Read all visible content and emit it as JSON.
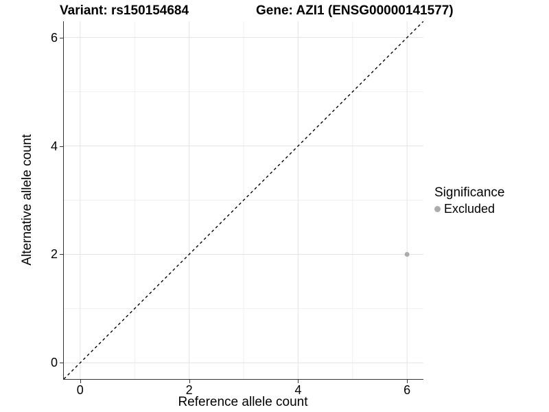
{
  "chart_data": {
    "type": "scatter",
    "title_left": "Variant: rs150154684",
    "title_right": "Gene: AZI1 (ENSG00000141577)",
    "xlabel": "Reference allele count",
    "ylabel": "Alternative allele count",
    "xlim": [
      -0.3,
      6.3
    ],
    "ylim": [
      -0.3,
      6.3
    ],
    "x_ticks": [
      "0",
      "2",
      "4",
      "6"
    ],
    "x_tick_values": [
      0,
      2,
      4,
      6
    ],
    "y_ticks": [
      "0",
      "2",
      "4",
      "6"
    ],
    "y_tick_values": [
      0,
      2,
      4,
      6
    ],
    "x_minor_values": [
      1,
      3,
      5
    ],
    "y_minor_values": [
      1,
      3,
      5
    ],
    "grid": "major and minor, light gray on white",
    "legend": {
      "title": "Significance",
      "position": "right",
      "entries": [
        {
          "label": "Excluded",
          "color": "#ababab"
        }
      ]
    },
    "series": [
      {
        "name": "Excluded",
        "color": "#ababab",
        "points": [
          {
            "x": 6,
            "y": 2
          }
        ]
      }
    ],
    "reference_line": {
      "slope": 1,
      "intercept": 0,
      "style": "dashed",
      "color": "#000000"
    }
  },
  "colors": {
    "grid_major": "#e3e3e3",
    "grid_minor": "#efefef",
    "axis_line": "#333333",
    "point": "#ababab",
    "text": "#000000"
  }
}
